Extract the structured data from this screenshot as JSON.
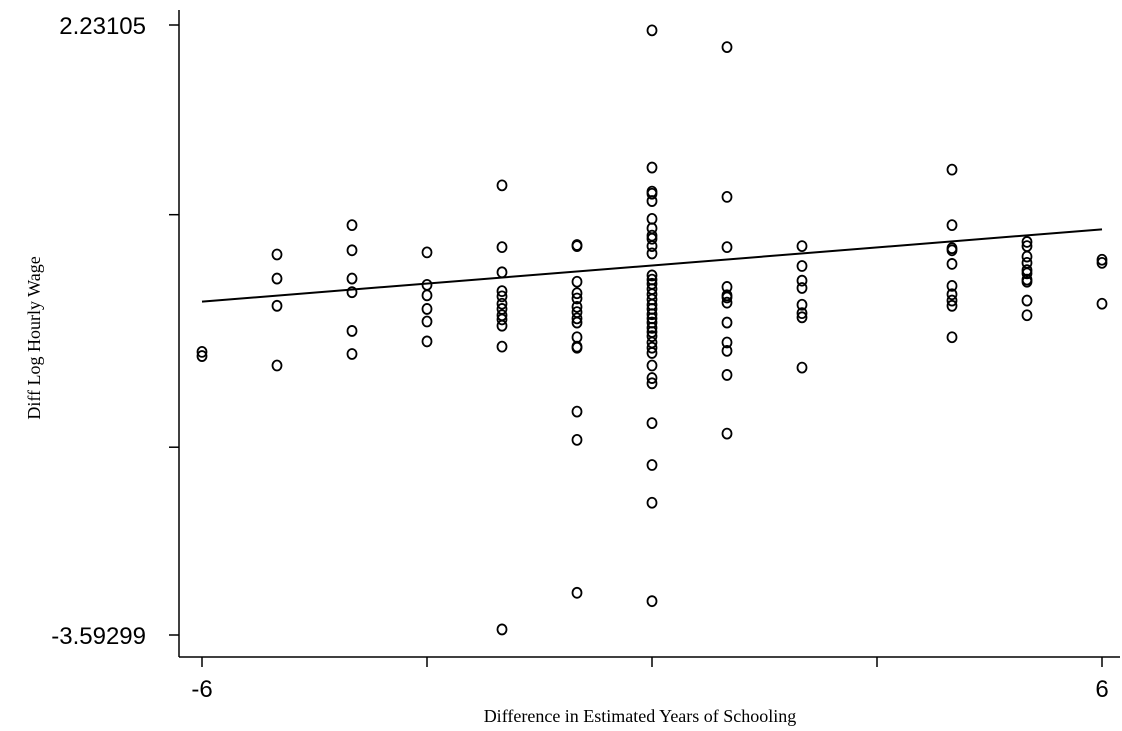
{
  "chart_data": {
    "type": "scatter",
    "title": "",
    "xlabel": "Difference in Estimated Years of Schooling",
    "ylabel": "Diff Log Hourly Wage",
    "xlim": [
      -6,
      6
    ],
    "ylim": [
      -3.59299,
      2.23105
    ],
    "x_tick_labels": [
      {
        "value": -6,
        "label": "-6"
      },
      {
        "value": 6,
        "label": "6"
      }
    ],
    "y_tick_labels": [
      {
        "value": 2.23105,
        "label": "2.23105"
      },
      {
        "value": -3.59299,
        "label": "-3.59299"
      }
    ],
    "x_ticks": [
      -6,
      -3,
      0,
      3,
      6
    ],
    "y_ticks": [
      -3.59299,
      -1.8,
      0.42,
      2.23105
    ],
    "y_ticks_unlabeled": [
      -1.64,
      0.42
    ],
    "grid": false,
    "legend": "none",
    "fit_line": {
      "x": [
        -6,
        6
      ],
      "y": [
        -0.41,
        0.28
      ]
    },
    "points": [
      {
        "x": -6,
        "y": -0.89
      },
      {
        "x": -6,
        "y": -0.93
      },
      {
        "x": -5,
        "y": 0.04
      },
      {
        "x": -5,
        "y": -0.19
      },
      {
        "x": -5,
        "y": -0.45
      },
      {
        "x": -5,
        "y": -1.02
      },
      {
        "x": -4,
        "y": 0.32
      },
      {
        "x": -4,
        "y": 0.08
      },
      {
        "x": -4,
        "y": -0.19
      },
      {
        "x": -4,
        "y": -0.32
      },
      {
        "x": -4,
        "y": -0.69
      },
      {
        "x": -4,
        "y": -0.91
      },
      {
        "x": -3,
        "y": 0.06
      },
      {
        "x": -3,
        "y": -0.25
      },
      {
        "x": -3,
        "y": -0.35
      },
      {
        "x": -3,
        "y": -0.48
      },
      {
        "x": -3,
        "y": -0.6
      },
      {
        "x": -3,
        "y": -0.79
      },
      {
        "x": -2,
        "y": 0.7
      },
      {
        "x": -2,
        "y": 0.11
      },
      {
        "x": -2,
        "y": -0.13
      },
      {
        "x": -2,
        "y": -0.31
      },
      {
        "x": -2,
        "y": -0.36
      },
      {
        "x": -2,
        "y": -0.43
      },
      {
        "x": -2,
        "y": -0.48
      },
      {
        "x": -2,
        "y": -0.54
      },
      {
        "x": -2,
        "y": -0.58
      },
      {
        "x": -2,
        "y": -0.64
      },
      {
        "x": -2,
        "y": -0.84
      },
      {
        "x": -2,
        "y": -3.54
      },
      {
        "x": -1,
        "y": 0.13
      },
      {
        "x": -1,
        "y": 0.12
      },
      {
        "x": -1,
        "y": -0.22
      },
      {
        "x": -1,
        "y": -0.33
      },
      {
        "x": -1,
        "y": -0.38
      },
      {
        "x": -1,
        "y": -0.46
      },
      {
        "x": -1,
        "y": -0.51
      },
      {
        "x": -1,
        "y": -0.57
      },
      {
        "x": -1,
        "y": -0.61
      },
      {
        "x": -1,
        "y": -0.75
      },
      {
        "x": -1,
        "y": -0.84
      },
      {
        "x": -1,
        "y": -0.85
      },
      {
        "x": -1,
        "y": -1.46
      },
      {
        "x": -1,
        "y": -1.73
      },
      {
        "x": -1,
        "y": -3.19
      },
      {
        "x": 0,
        "y": 2.18
      },
      {
        "x": 0,
        "y": 0.87
      },
      {
        "x": 0,
        "y": 0.64
      },
      {
        "x": 0,
        "y": 0.62
      },
      {
        "x": 0,
        "y": 0.55
      },
      {
        "x": 0,
        "y": 0.38
      },
      {
        "x": 0,
        "y": 0.29
      },
      {
        "x": 0,
        "y": 0.22
      },
      {
        "x": 0,
        "y": 0.19
      },
      {
        "x": 0,
        "y": 0.12
      },
      {
        "x": 0,
        "y": 0.05
      },
      {
        "x": 0,
        "y": -0.16
      },
      {
        "x": 0,
        "y": -0.2
      },
      {
        "x": 0,
        "y": -0.24
      },
      {
        "x": 0,
        "y": -0.29
      },
      {
        "x": 0,
        "y": -0.34
      },
      {
        "x": 0,
        "y": -0.39
      },
      {
        "x": 0,
        "y": -0.44
      },
      {
        "x": 0,
        "y": -0.48
      },
      {
        "x": 0,
        "y": -0.53
      },
      {
        "x": 0,
        "y": -0.57
      },
      {
        "x": 0,
        "y": -0.61
      },
      {
        "x": 0,
        "y": -0.66
      },
      {
        "x": 0,
        "y": -0.7
      },
      {
        "x": 0,
        "y": -0.74
      },
      {
        "x": 0,
        "y": -0.8
      },
      {
        "x": 0,
        "y": -0.85
      },
      {
        "x": 0,
        "y": -0.9
      },
      {
        "x": 0,
        "y": -1.02
      },
      {
        "x": 0,
        "y": -1.14
      },
      {
        "x": 0,
        "y": -1.19
      },
      {
        "x": 0,
        "y": -1.57
      },
      {
        "x": 0,
        "y": -1.97
      },
      {
        "x": 0,
        "y": -2.33
      },
      {
        "x": 0,
        "y": -3.27
      },
      {
        "x": 1,
        "y": 2.02
      },
      {
        "x": 1,
        "y": 0.59
      },
      {
        "x": 1,
        "y": 0.11
      },
      {
        "x": 1,
        "y": -0.27
      },
      {
        "x": 1,
        "y": -0.35
      },
      {
        "x": 1,
        "y": -0.37
      },
      {
        "x": 1,
        "y": -0.42
      },
      {
        "x": 1,
        "y": -0.61
      },
      {
        "x": 1,
        "y": -0.8
      },
      {
        "x": 1,
        "y": -0.88
      },
      {
        "x": 1,
        "y": -1.11
      },
      {
        "x": 1,
        "y": -1.67
      },
      {
        "x": 2,
        "y": 0.12
      },
      {
        "x": 2,
        "y": -0.07
      },
      {
        "x": 2,
        "y": -0.21
      },
      {
        "x": 2,
        "y": -0.28
      },
      {
        "x": 2,
        "y": -0.44
      },
      {
        "x": 2,
        "y": -0.52
      },
      {
        "x": 2,
        "y": -0.56
      },
      {
        "x": 2,
        "y": -1.04
      },
      {
        "x": 4,
        "y": 0.85
      },
      {
        "x": 4,
        "y": 0.32
      },
      {
        "x": 4,
        "y": 0.1
      },
      {
        "x": 4,
        "y": 0.08
      },
      {
        "x": 4,
        "y": -0.05
      },
      {
        "x": 4,
        "y": -0.26
      },
      {
        "x": 4,
        "y": -0.34
      },
      {
        "x": 4,
        "y": -0.4
      },
      {
        "x": 4,
        "y": -0.45
      },
      {
        "x": 4,
        "y": -0.75
      },
      {
        "x": 5,
        "y": 0.16
      },
      {
        "x": 5,
        "y": 0.12
      },
      {
        "x": 5,
        "y": 0.02
      },
      {
        "x": 5,
        "y": -0.04
      },
      {
        "x": 5,
        "y": -0.11
      },
      {
        "x": 5,
        "y": -0.14
      },
      {
        "x": 5,
        "y": -0.2
      },
      {
        "x": 5,
        "y": -0.22
      },
      {
        "x": 5,
        "y": -0.4
      },
      {
        "x": 5,
        "y": -0.54
      },
      {
        "x": 6,
        "y": -0.01
      },
      {
        "x": 6,
        "y": -0.04
      },
      {
        "x": 6,
        "y": -0.43
      }
    ]
  }
}
